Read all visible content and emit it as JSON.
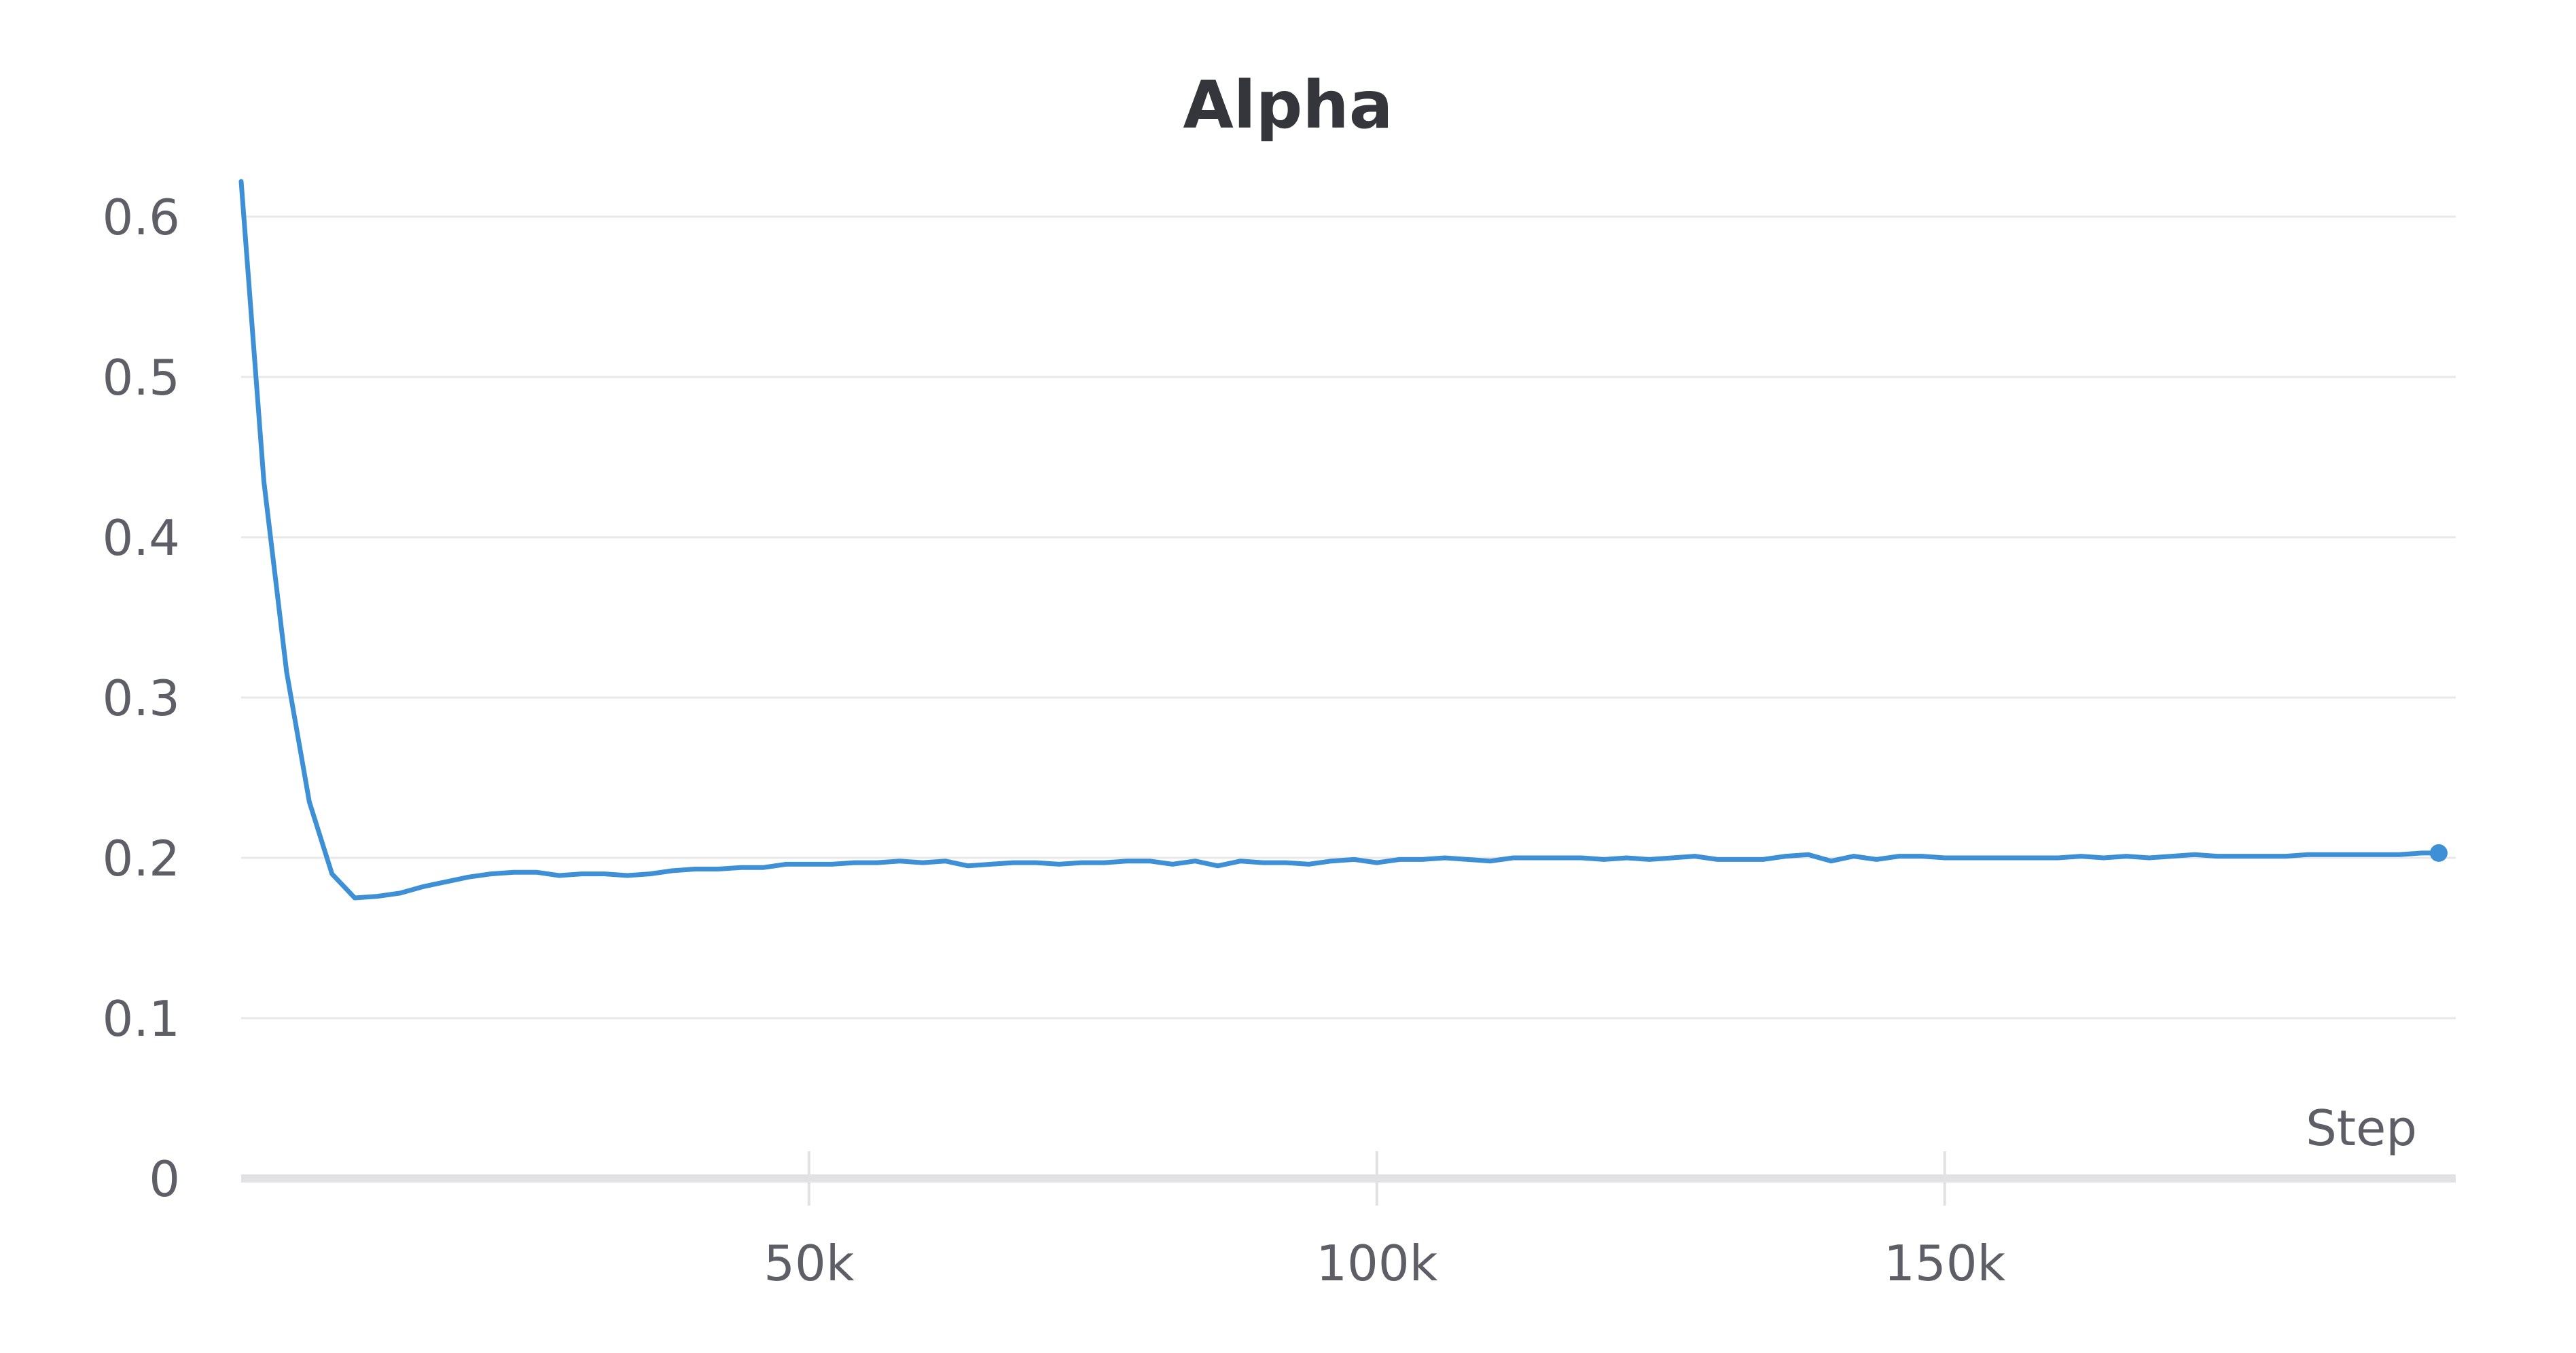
{
  "chart_data": {
    "type": "line",
    "title": "Alpha",
    "xlabel": "Step",
    "ylabel": "",
    "xlim": [
      0,
      195000
    ],
    "ylim": [
      0,
      0.6
    ],
    "x_ticks": [
      {
        "value": 50000,
        "label": "50k"
      },
      {
        "value": 100000,
        "label": "100k"
      },
      {
        "value": 150000,
        "label": "150k"
      }
    ],
    "y_ticks": [
      {
        "value": 0,
        "label": "0"
      },
      {
        "value": 0.1,
        "label": "0.1"
      },
      {
        "value": 0.2,
        "label": "0.2"
      },
      {
        "value": 0.3,
        "label": "0.3"
      },
      {
        "value": 0.4,
        "label": "0.4"
      },
      {
        "value": 0.5,
        "label": "0.5"
      },
      {
        "value": 0.6,
        "label": "0.6"
      }
    ],
    "grid": true,
    "legend": "none",
    "color": "#3d8fd6",
    "last_point_marker": true,
    "series": [
      {
        "x": [
          0,
          2000,
          4000,
          6000,
          8000,
          10000,
          12000,
          14000,
          16000,
          18000,
          20000,
          22000,
          24000,
          26000,
          28000,
          30000,
          32000,
          34000,
          36000,
          38000,
          40000,
          42000,
          44000,
          46000,
          48000,
          50000,
          52000,
          54000,
          56000,
          58000,
          60000,
          62000,
          64000,
          66000,
          68000,
          70000,
          72000,
          74000,
          76000,
          78000,
          80000,
          82000,
          84000,
          86000,
          88000,
          90000,
          92000,
          94000,
          96000,
          98000,
          100000,
          102000,
          104000,
          106000,
          108000,
          110000,
          112000,
          114000,
          116000,
          118000,
          120000,
          122000,
          124000,
          126000,
          128000,
          130000,
          132000,
          134000,
          136000,
          138000,
          140000,
          142000,
          144000,
          146000,
          148000,
          150000,
          152000,
          154000,
          156000,
          158000,
          160000,
          162000,
          164000,
          166000,
          168000,
          170000,
          172000,
          174000,
          176000,
          178000,
          180000,
          182000,
          184000,
          186000,
          188000,
          190000,
          192000,
          193500
        ],
        "values": [
          0.622,
          0.435,
          0.316,
          0.235,
          0.19,
          0.175,
          0.176,
          0.178,
          0.182,
          0.185,
          0.188,
          0.19,
          0.191,
          0.191,
          0.189,
          0.19,
          0.19,
          0.189,
          0.19,
          0.192,
          0.193,
          0.193,
          0.194,
          0.194,
          0.196,
          0.196,
          0.196,
          0.197,
          0.197,
          0.198,
          0.197,
          0.198,
          0.195,
          0.196,
          0.197,
          0.197,
          0.196,
          0.197,
          0.197,
          0.198,
          0.198,
          0.196,
          0.198,
          0.195,
          0.198,
          0.197,
          0.197,
          0.196,
          0.198,
          0.199,
          0.197,
          0.199,
          0.199,
          0.2,
          0.199,
          0.198,
          0.2,
          0.2,
          0.2,
          0.2,
          0.199,
          0.2,
          0.199,
          0.2,
          0.201,
          0.199,
          0.199,
          0.199,
          0.201,
          0.202,
          0.198,
          0.201,
          0.199,
          0.201,
          0.201,
          0.2,
          0.2,
          0.2,
          0.2,
          0.2,
          0.2,
          0.201,
          0.2,
          0.201,
          0.2,
          0.201,
          0.202,
          0.201,
          0.201,
          0.201,
          0.201,
          0.202,
          0.202,
          0.202,
          0.202,
          0.202,
          0.203,
          0.203
        ]
      }
    ]
  }
}
